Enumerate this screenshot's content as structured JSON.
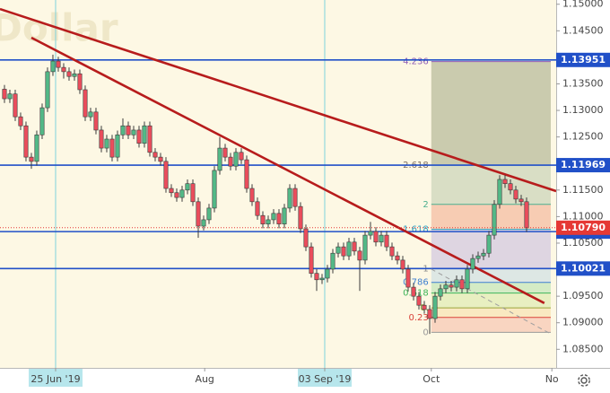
{
  "chart_data": {
    "type": "candlestick",
    "watermark": "Dollar",
    "up_color": "#53b987",
    "down_color": "#eb4d5c",
    "open": [
      1.134,
      1.1322,
      1.1331,
      1.1288,
      1.1271,
      1.1212,
      1.1204,
      1.1254,
      1.1305,
      1.1373,
      1.1393,
      1.1381,
      1.1373,
      1.1364,
      1.1369,
      1.1339,
      1.1288,
      1.1297,
      1.1263,
      1.1229,
      1.1246,
      1.1212,
      1.1254,
      1.1271,
      1.1254,
      1.1263,
      1.1238,
      1.1271,
      1.1221,
      1.1212,
      1.1204,
      1.1153,
      1.1145,
      1.1136,
      1.115,
      1.1162,
      1.1128,
      1.1082,
      1.1094,
      1.1116,
      1.1187,
      1.1229,
      1.1212,
      1.1195,
      1.1221,
      1.1207,
      1.1153,
      1.1128,
      1.1102,
      1.1086,
      1.1094,
      1.1106,
      1.1086,
      1.1116,
      1.1153,
      1.1119,
      1.1077,
      1.1043,
      1.0993,
      1.0981,
      1.0984,
      1.1001,
      1.1031,
      1.1043,
      1.1026,
      1.1052,
      1.1035,
      1.1018,
      1.1065,
      1.1072,
      1.1052,
      1.1065,
      1.1043,
      1.1026,
      1.1018,
      1.1001,
      1.0967,
      1.095,
      1.0933,
      1.0925,
      1.0908,
      1.095,
      1.0964,
      1.0971,
      1.0967,
      1.0981,
      1.0964,
      1.1001,
      1.1021,
      1.1026,
      1.1031,
      1.1065,
      1.1123,
      1.117,
      1.1162,
      1.115,
      1.1133,
      1.1128
    ],
    "high": [
      1.1348,
      1.1339,
      1.1339,
      1.1296,
      1.1279,
      1.122,
      1.1262,
      1.1313,
      1.1381,
      1.1405,
      1.1401,
      1.1389,
      1.1381,
      1.1377,
      1.1377,
      1.1347,
      1.1305,
      1.1305,
      1.1271,
      1.1254,
      1.1254,
      1.1262,
      1.1285,
      1.1279,
      1.1271,
      1.1271,
      1.1279,
      1.1279,
      1.1229,
      1.122,
      1.1212,
      1.1161,
      1.1153,
      1.1158,
      1.117,
      1.117,
      1.1136,
      1.1102,
      1.1124,
      1.1195,
      1.125,
      1.1237,
      1.122,
      1.1229,
      1.1229,
      1.1215,
      1.1161,
      1.1136,
      1.111,
      1.1102,
      1.1114,
      1.1114,
      1.1124,
      1.1161,
      1.1161,
      1.1127,
      1.1085,
      1.1051,
      1.1001,
      1.0992,
      1.1009,
      1.1039,
      1.1051,
      1.1051,
      1.106,
      1.106,
      1.1043,
      1.1073,
      1.109,
      1.108,
      1.1073,
      1.1073,
      1.1051,
      1.1034,
      1.1026,
      1.1009,
      1.0975,
      1.0958,
      1.0941,
      1.0933,
      1.0958,
      1.0972,
      1.0979,
      1.0979,
      1.0989,
      1.0989,
      1.1009,
      1.1029,
      1.1034,
      1.1039,
      1.1073,
      1.1131,
      1.1178,
      1.1178,
      1.117,
      1.1158,
      1.1141,
      1.1136
    ],
    "low": [
      1.1314,
      1.1314,
      1.128,
      1.1263,
      1.1204,
      1.119,
      1.1196,
      1.1246,
      1.1297,
      1.1365,
      1.1373,
      1.136,
      1.1356,
      1.1356,
      1.1331,
      1.128,
      1.128,
      1.1255,
      1.1221,
      1.1221,
      1.1204,
      1.1204,
      1.1246,
      1.1246,
      1.1246,
      1.123,
      1.123,
      1.1213,
      1.1204,
      1.1196,
      1.1145,
      1.1137,
      1.1128,
      1.1128,
      1.1142,
      1.112,
      1.106,
      1.1074,
      1.1086,
      1.1108,
      1.1179,
      1.1204,
      1.1187,
      1.1187,
      1.1199,
      1.1145,
      1.112,
      1.1094,
      1.1078,
      1.1078,
      1.1086,
      1.1078,
      1.1078,
      1.1108,
      1.1111,
      1.1069,
      1.1035,
      1.0985,
      1.096,
      1.0973,
      1.0976,
      1.0993,
      1.1023,
      1.1018,
      1.1018,
      1.1027,
      1.096,
      1.101,
      1.1057,
      1.1044,
      1.1044,
      1.1035,
      1.1018,
      1.101,
      1.0993,
      1.0959,
      1.0942,
      1.0925,
      1.0917,
      1.0879,
      1.09,
      1.0942,
      1.0956,
      1.0959,
      1.0959,
      1.0956,
      1.0956,
      1.0993,
      1.1013,
      1.1018,
      1.1023,
      1.1057,
      1.1115,
      1.1154,
      1.1142,
      1.1125,
      1.112,
      1.1071
    ],
    "close": [
      1.1322,
      1.1331,
      1.1288,
      1.1271,
      1.1212,
      1.1204,
      1.1254,
      1.1305,
      1.1373,
      1.1393,
      1.1381,
      1.1373,
      1.1364,
      1.1369,
      1.1339,
      1.1288,
      1.1297,
      1.1263,
      1.1229,
      1.1246,
      1.1212,
      1.1254,
      1.1271,
      1.1254,
      1.1263,
      1.1238,
      1.1271,
      1.1221,
      1.1212,
      1.1204,
      1.1153,
      1.1145,
      1.1136,
      1.115,
      1.1162,
      1.1128,
      1.1082,
      1.1094,
      1.1116,
      1.1187,
      1.1229,
      1.1212,
      1.1195,
      1.1221,
      1.1207,
      1.1153,
      1.1128,
      1.1102,
      1.1086,
      1.1094,
      1.1106,
      1.1086,
      1.1116,
      1.1153,
      1.1119,
      1.1077,
      1.1043,
      1.0993,
      1.0981,
      1.0984,
      1.1001,
      1.1031,
      1.1043,
      1.1026,
      1.1052,
      1.1035,
      1.1018,
      1.1065,
      1.1072,
      1.1052,
      1.1065,
      1.1043,
      1.1026,
      1.1018,
      1.1001,
      1.0967,
      1.095,
      1.0933,
      1.0925,
      1.0908,
      1.095,
      1.0964,
      1.0971,
      1.0967,
      1.0981,
      1.0964,
      1.1001,
      1.1021,
      1.1026,
      1.1031,
      1.1065,
      1.1123,
      1.117,
      1.1162,
      1.115,
      1.1133,
      1.1128,
      1.1079
    ],
    "xlim": [
      -0.83,
      102.5
    ],
    "xticks": [
      {
        "value": 9.5,
        "label": "25 Jun '19",
        "highlight": true
      },
      {
        "value": 37.2,
        "label": "Aug"
      },
      {
        "value": 59.5,
        "label": "03 Sep '19",
        "highlight": true
      },
      {
        "value": 79.3,
        "label": "Oct"
      },
      {
        "value": 101.7,
        "label": "No"
      }
    ],
    "ylim": [
      1.0815,
      1.1508
    ],
    "yticks": [
      {
        "value": 1.15,
        "label": "1.15000"
      },
      {
        "value": 1.145,
        "label": "1.14500"
      },
      {
        "value": 1.14,
        "label": "1.14000"
      },
      {
        "value": 1.135,
        "label": "1.13500"
      },
      {
        "value": 1.13,
        "label": "1.13000"
      },
      {
        "value": 1.125,
        "label": "1.12500"
      },
      {
        "value": 1.12,
        "label": "1.12000"
      },
      {
        "value": 1.115,
        "label": "1.11500"
      },
      {
        "value": 1.11,
        "label": "1.11000"
      },
      {
        "value": 1.105,
        "label": "1.10500"
      },
      {
        "value": 1.1,
        "label": "1.10000"
      },
      {
        "value": 1.095,
        "label": "1.09500"
      },
      {
        "value": 1.09,
        "label": "1.09000"
      },
      {
        "value": 1.085,
        "label": "1.08500"
      }
    ],
    "grid": false,
    "horizontal_lines": [
      1.13951,
      1.11969,
      1.10717,
      1.10021
    ],
    "horizontal_line_color": "#2150c8",
    "current_price": {
      "value": 1.1079,
      "label": "1.10790"
    },
    "current_price_color": "#e53935",
    "trendlines": [
      {
        "color": "#b71c1c",
        "x": [
          -0.83,
          102.5
        ],
        "y": [
          1.1491,
          1.1148
        ]
      },
      {
        "color": "#b71c1c",
        "x": [
          5,
          100.3
        ],
        "y": [
          1.1437,
          1.0937
        ]
      },
      {
        "color": "#9e9e9e",
        "dash": true,
        "x": [
          79.3,
          101.5
        ],
        "y": [
          1.1001,
          1.0879
        ]
      }
    ],
    "fib": {
      "x": [
        79.3,
        101.5
      ],
      "levels": [
        {
          "label": "4.236",
          "price": 1.1392,
          "color": "#8e5bb5"
        },
        {
          "label": "2.618",
          "price": 1.1197,
          "color": "#7d6f5f"
        },
        {
          "label": "2",
          "price": 1.1123,
          "color": "#4caf8f"
        },
        {
          "label": "1.618",
          "price": 1.1076,
          "color": "#29a3c4"
        },
        {
          "label": "1",
          "price": 1.1002,
          "color": "#8a8a8a"
        },
        {
          "label": "0.786",
          "price": 1.0976,
          "color": "#3f7fd0"
        },
        {
          "label": "0.618",
          "price": 1.0956,
          "color": "#3fb55a"
        },
        {
          "label": "0.",
          "price": 1.0928,
          "color": "#9aa43a"
        },
        {
          "label": "0.23",
          "price": 1.091,
          "color": "#d9433a"
        },
        {
          "label": "0",
          "price": 1.0882,
          "color": "#9a9a9a"
        }
      ],
      "band_colors": [
        "rgba(130,140,100,0.42)",
        "rgba(150,175,140,0.35)",
        "rgba(240,150,120,0.45)",
        "rgba(175,160,220,0.4)",
        "rgba(160,200,230,0.35)",
        "rgba(150,215,150,0.4)",
        "rgba(200,225,140,0.4)",
        "rgba(245,215,150,0.45)",
        "rgba(245,170,150,0.45)"
      ]
    }
  }
}
